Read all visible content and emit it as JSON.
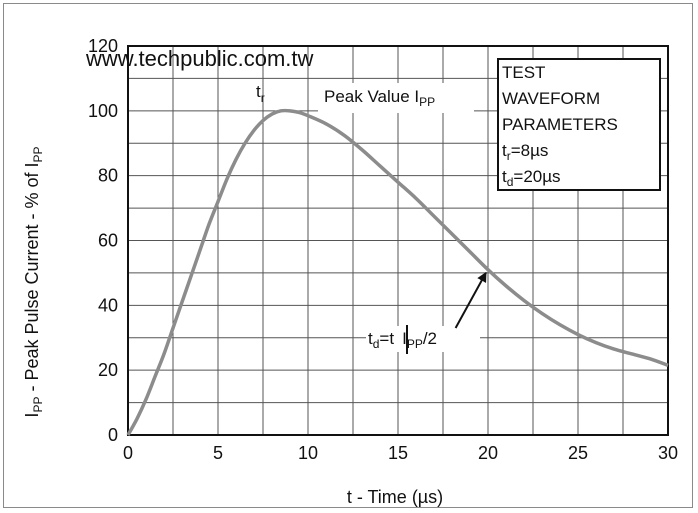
{
  "watermark": "www.techpublic.com.tw",
  "chart_data": {
    "type": "line",
    "xlabel": "t - Time (µs)",
    "ylabel": {
      "main": "I",
      "sub": "PP",
      "rest": " - Peak Pulse Current - % of I",
      "sub2": "PP"
    },
    "xlim": [
      0,
      30
    ],
    "ylim": [
      0,
      120
    ],
    "xticks": [
      "0",
      "5",
      "10",
      "15",
      "20",
      "25",
      "30"
    ],
    "yticks": [
      "0",
      "20",
      "40",
      "60",
      "80",
      "100",
      "120"
    ],
    "grid": true,
    "series": [
      {
        "x": [
          0,
          0.5,
          1,
          1.5,
          2,
          2.5,
          3,
          3.5,
          4,
          4.5,
          5,
          5.5,
          6,
          6.5,
          7,
          7.5,
          8,
          8.5,
          9,
          9.5,
          10,
          11,
          12,
          13,
          14,
          15,
          16,
          17,
          18,
          19,
          20,
          21,
          22,
          23,
          24,
          25,
          26,
          27,
          28,
          29,
          30
        ],
        "y": [
          0,
          5,
          11,
          18,
          25,
          33,
          41,
          49,
          57,
          65,
          72,
          79,
          85,
          90,
          94,
          97,
          99,
          100,
          100,
          99.5,
          98.5,
          96,
          92.5,
          88,
          83,
          78,
          73,
          67.5,
          62,
          56.5,
          51,
          46,
          41.5,
          37.5,
          34,
          31,
          28.5,
          26.5,
          25,
          23.5,
          21.5
        ]
      }
    ],
    "annotations": {
      "tr": {
        "main": "t",
        "sub": "r"
      },
      "peak": {
        "main": "Peak Value I",
        "sub": "PP"
      },
      "td": {
        "t1": "t",
        "s1": "d",
        "t2": "=t",
        "t3": "I",
        "s3": "PP",
        "t4": "/2"
      },
      "arrow": {
        "from": [
          18.2,
          33
        ],
        "to": [
          20,
          51
        ]
      }
    },
    "parameters_box": {
      "lines": [
        "TEST",
        "WAVEFORM",
        "PARAMETERS"
      ],
      "tr": {
        "main": "t",
        "sub": "r",
        "value": "=8µs"
      },
      "td": {
        "main": "t",
        "sub": "d",
        "value": "=20µs"
      }
    }
  }
}
